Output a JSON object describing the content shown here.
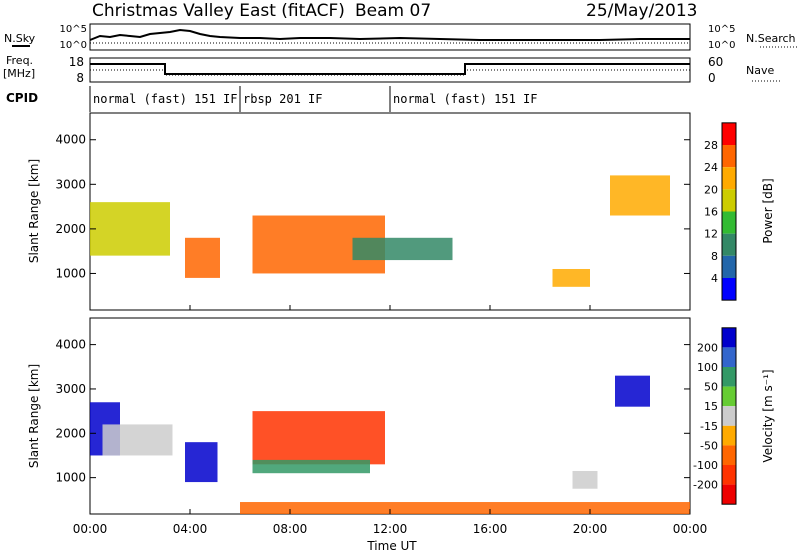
{
  "header": {
    "radar": "Christmas Valley East (fitACF)",
    "beam": "Beam 07",
    "date": "25/May/2013"
  },
  "left_labels": {
    "nsky": "N.Sky",
    "freq": "Freq.",
    "freq_unit": "[MHz]",
    "cpid": "CPID"
  },
  "right_labels": {
    "nsearch": "N.Search",
    "nave": "Nave"
  },
  "noise_panel": {
    "ticks_left": [
      "10^5",
      "10^0"
    ],
    "ticks_right": [
      "10^5",
      "10^0"
    ]
  },
  "freq_panel": {
    "ticks_left": [
      "18",
      "8"
    ],
    "ticks_right": [
      "60",
      "0"
    ]
  },
  "cpid_segments": [
    {
      "label": "normal (fast) 151 IF",
      "start_h": 0,
      "end_h": 6
    },
    {
      "label": "rbsp 201 IF",
      "start_h": 6,
      "end_h": 12
    },
    {
      "label": "normal (fast) 151 IF",
      "start_h": 12,
      "end_h": 24
    }
  ],
  "chart_data": [
    {
      "type": "heatmap",
      "name": "Power",
      "ylabel": "Slant Range [km]",
      "ylim": [
        180,
        4600
      ],
      "yticks": [
        "1000",
        "2000",
        "3000",
        "4000"
      ],
      "colorbar_label": "Power [dB]",
      "colorbar_ticks": [
        "28",
        "24",
        "20",
        "16",
        "12",
        "8",
        "4"
      ],
      "colorbar_colors": [
        "#ff0000",
        "#ff6600",
        "#ffaa00",
        "#cccc00",
        "#33bb33",
        "#338866",
        "#2266aa",
        "#0000ff"
      ],
      "regions": [
        {
          "x": [
            0,
            3.2
          ],
          "y": [
            1400,
            2600
          ],
          "v": 18
        },
        {
          "x": [
            3.8,
            5.2
          ],
          "y": [
            900,
            1800
          ],
          "v": 26
        },
        {
          "x": [
            6.5,
            11.8
          ],
          "y": [
            1000,
            2300
          ],
          "v": 24
        },
        {
          "x": [
            10.5,
            14.5
          ],
          "y": [
            1300,
            1800
          ],
          "v": 10
        },
        {
          "x": [
            18.5,
            20
          ],
          "y": [
            700,
            1100
          ],
          "v": 22
        },
        {
          "x": [
            20.8,
            23.2
          ],
          "y": [
            2300,
            3200
          ],
          "v": 20
        }
      ]
    },
    {
      "type": "heatmap",
      "name": "Velocity",
      "ylabel": "Slant Range [km]",
      "ylim": [
        180,
        4600
      ],
      "yticks": [
        "1000",
        "2000",
        "3000",
        "4000"
      ],
      "colorbar_label": "Velocity [m s⁻¹]",
      "colorbar_ticks": [
        "200",
        "100",
        "50",
        "15",
        "-15",
        "-50",
        "-100",
        "-200"
      ],
      "colorbar_colors": [
        "#0000cc",
        "#3366cc",
        "#339966",
        "#66cc33",
        "#cccccc",
        "#ffaa00",
        "#ff6600",
        "#ff3300",
        "#ee0000"
      ],
      "regions": [
        {
          "x": [
            0,
            1.2
          ],
          "y": [
            1500,
            2700
          ],
          "v": 250
        },
        {
          "x": [
            0.5,
            3.3
          ],
          "y": [
            1500,
            2200
          ],
          "v": 0
        },
        {
          "x": [
            3.8,
            5.1
          ],
          "y": [
            900,
            1800
          ],
          "v": 250
        },
        {
          "x": [
            6.5,
            11.8
          ],
          "y": [
            1300,
            2500
          ],
          "v": -120
        },
        {
          "x": [
            6.5,
            11.2
          ],
          "y": [
            1100,
            1400
          ],
          "v": 70
        },
        {
          "x": [
            6,
            24
          ],
          "y": [
            180,
            450
          ],
          "v": -60
        },
        {
          "x": [
            19.3,
            20.3
          ],
          "y": [
            750,
            1150
          ],
          "v": 0
        },
        {
          "x": [
            21,
            22.4
          ],
          "y": [
            2600,
            3300
          ],
          "v": 250
        }
      ]
    }
  ],
  "x_axis": {
    "ticks": [
      "00:00",
      "04:00",
      "08:00",
      "12:00",
      "16:00",
      "20:00",
      "00:00"
    ],
    "label": "Time UT",
    "range_h": [
      0,
      24
    ]
  }
}
